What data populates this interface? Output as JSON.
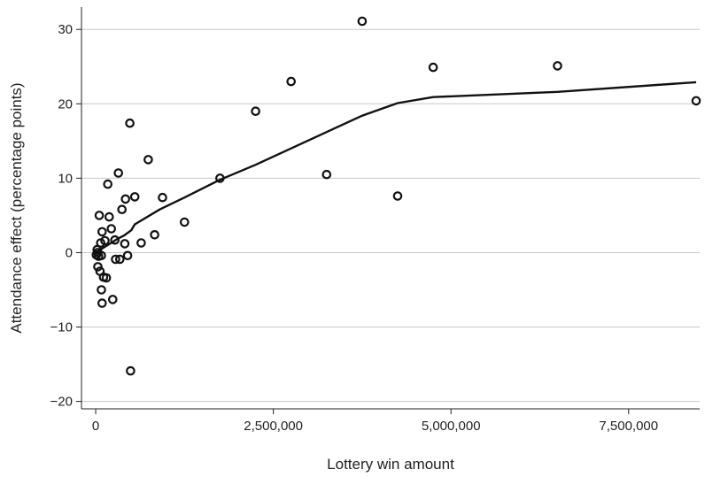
{
  "chart_data": {
    "type": "scatter",
    "title": "",
    "xlabel": "Lottery win amount",
    "ylabel": "Attendance effect (percentage points)",
    "xlim": [
      -200000,
      8500000
    ],
    "ylim": [
      -21,
      33
    ],
    "x_ticks": [
      0,
      2500000,
      5000000,
      7500000
    ],
    "x_tick_labels": [
      "0",
      "2,500,000",
      "5,000,000",
      "7,500,000"
    ],
    "y_ticks": [
      -20,
      -10,
      0,
      10,
      20,
      30
    ],
    "y_tick_labels": [
      "−20",
      "−10",
      "0",
      "10",
      "20",
      "30"
    ],
    "grid": "horizontal",
    "colors": {
      "marks": "#111111",
      "grid": "#c8c8c8",
      "axis": "#222222"
    },
    "series": [
      {
        "type": "scatter",
        "points": [
          [
            3750000,
            31.1
          ],
          [
            6500000,
            25.1
          ],
          [
            4750000,
            24.9
          ],
          [
            2750000,
            23.0
          ],
          [
            8450000,
            20.4
          ],
          [
            2250000,
            19.0
          ],
          [
            480000,
            17.4
          ],
          [
            740000,
            12.5
          ],
          [
            320000,
            10.7
          ],
          [
            3250000,
            10.5
          ],
          [
            1750000,
            10.0
          ],
          [
            170000,
            9.2
          ],
          [
            4250000,
            7.6
          ],
          [
            550000,
            7.5
          ],
          [
            940000,
            7.4
          ],
          [
            420000,
            7.2
          ],
          [
            370000,
            5.8
          ],
          [
            50000,
            5.0
          ],
          [
            190000,
            4.8
          ],
          [
            1250000,
            4.1
          ],
          [
            220000,
            3.2
          ],
          [
            90000,
            2.8
          ],
          [
            830000,
            2.4
          ],
          [
            270000,
            1.7
          ],
          [
            130000,
            1.6
          ],
          [
            70000,
            1.3
          ],
          [
            410000,
            1.2
          ],
          [
            640000,
            1.3
          ],
          [
            20000,
            0.4
          ],
          [
            30000,
            0.0
          ],
          [
            10000,
            -0.3
          ],
          [
            40000,
            -0.5
          ],
          [
            80000,
            -0.4
          ],
          [
            450000,
            -0.4
          ],
          [
            280000,
            -0.9
          ],
          [
            340000,
            -0.9
          ],
          [
            30000,
            -1.9
          ],
          [
            60000,
            -2.5
          ],
          [
            110000,
            -3.3
          ],
          [
            150000,
            -3.4
          ],
          [
            80000,
            -5.0
          ],
          [
            240000,
            -6.3
          ],
          [
            90000,
            -6.8
          ],
          [
            490000,
            -15.9
          ]
        ]
      },
      {
        "type": "line",
        "points": [
          [
            0,
            0.0
          ],
          [
            100000,
            0.6
          ],
          [
            200000,
            1.2
          ],
          [
            300000,
            1.8
          ],
          [
            400000,
            2.3
          ],
          [
            500000,
            3.0
          ],
          [
            550000,
            3.8
          ],
          [
            900000,
            5.8
          ],
          [
            1250000,
            7.4
          ],
          [
            1750000,
            9.8
          ],
          [
            2250000,
            11.8
          ],
          [
            2750000,
            14.0
          ],
          [
            3250000,
            16.2
          ],
          [
            3750000,
            18.4
          ],
          [
            4250000,
            20.1
          ],
          [
            4750000,
            20.9
          ],
          [
            6500000,
            21.6
          ],
          [
            8450000,
            22.9
          ]
        ]
      }
    ]
  }
}
